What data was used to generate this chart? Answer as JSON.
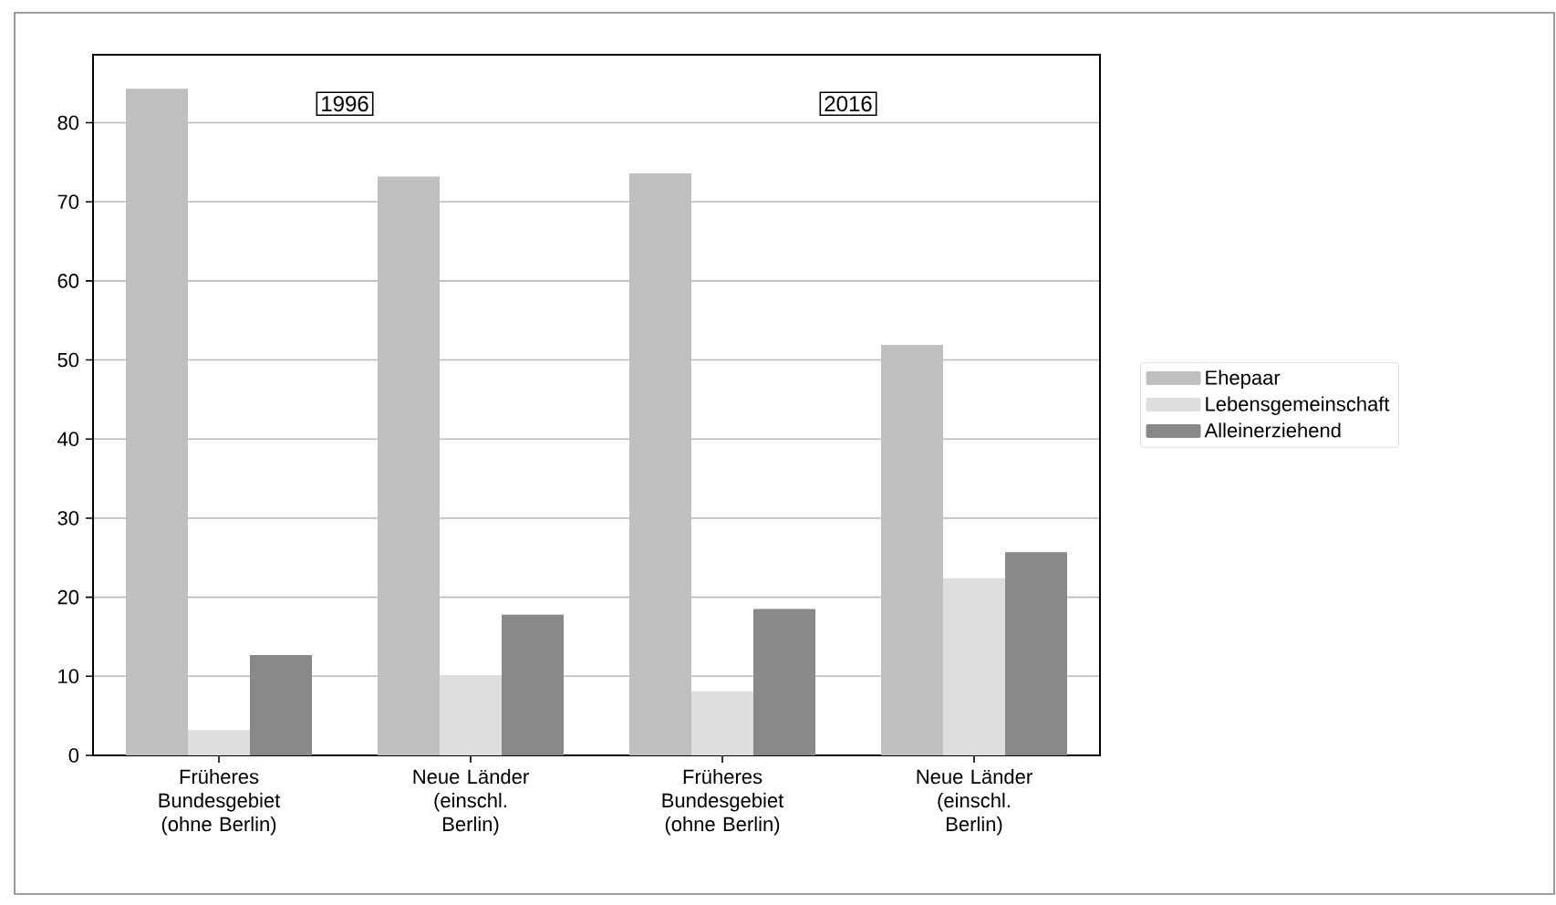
{
  "chart_data": {
    "type": "bar",
    "categories": [
      "Früheres Bundesgebiet (ohne Berlin)",
      "Neue Länder (einschl. Berlin)",
      "Früheres Bundesgebiet (ohne Berlin)",
      "Neue Länder (einschl. Berlin)"
    ],
    "series": [
      {
        "name": "Ehepaar",
        "color": "#bebfbe",
        "values": [
          84.3,
          73.2,
          73.6,
          51.9
        ]
      },
      {
        "name": "Lebensgemeinschaft",
        "color": "#dedede",
        "values": [
          3.2,
          10.1,
          8.1,
          22.4
        ]
      },
      {
        "name": "Alleinerziehend",
        "color": "#898989",
        "values": [
          12.7,
          17.8,
          18.5,
          25.7
        ]
      }
    ],
    "ylim": [
      0,
      88.6
    ],
    "yticks": [
      0,
      10,
      20,
      30,
      40,
      50,
      60,
      70,
      80
    ],
    "grid": "y",
    "legend": "right",
    "annotations": [
      "1996",
      "2016"
    ]
  }
}
